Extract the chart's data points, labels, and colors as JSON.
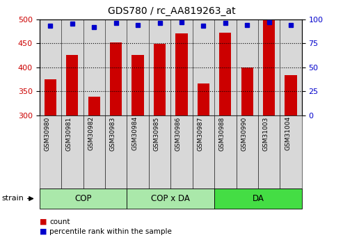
{
  "title": "GDS780 / rc_AA819263_at",
  "categories": [
    "GSM30980",
    "GSM30981",
    "GSM30982",
    "GSM30983",
    "GSM30984",
    "GSM30985",
    "GSM30986",
    "GSM30987",
    "GSM30988",
    "GSM30990",
    "GSM31003",
    "GSM31004"
  ],
  "bar_values": [
    375,
    425,
    338,
    451,
    425,
    448,
    470,
    366,
    472,
    400,
    500,
    383
  ],
  "percentile_values": [
    93,
    95,
    92,
    96,
    94,
    96,
    97,
    93,
    96,
    94,
    97,
    94
  ],
  "bar_color": "#cc0000",
  "dot_color": "#0000cc",
  "ylim_left": [
    300,
    500
  ],
  "ylim_right": [
    0,
    100
  ],
  "yticks_left": [
    300,
    350,
    400,
    450,
    500
  ],
  "yticks_right": [
    0,
    25,
    50,
    75,
    100
  ],
  "group_labels": [
    "COP",
    "COP x DA",
    "DA"
  ],
  "group_starts": [
    0,
    4,
    8
  ],
  "group_ends": [
    4,
    8,
    12
  ],
  "group_colors": [
    "#aae8aa",
    "#aae8aa",
    "#44dd44"
  ],
  "tick_label_color_left": "#cc0000",
  "tick_label_color_right": "#0000cc",
  "bar_bg_color": "#d8d8d8",
  "bar_width": 0.55
}
